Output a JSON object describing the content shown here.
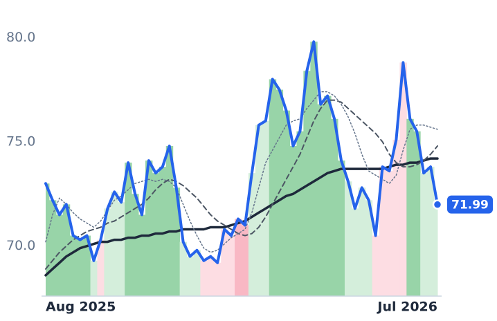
{
  "chart_data": {
    "type": "line",
    "categories": [
      "Aug 2025",
      null,
      null,
      null,
      null,
      null,
      null,
      null,
      null,
      null,
      null,
      null,
      null,
      null,
      null,
      null,
      null,
      null,
      null,
      null,
      null,
      null,
      null,
      null,
      null,
      null,
      null,
      null,
      null,
      null,
      null,
      null,
      null,
      null,
      null,
      null,
      null,
      null,
      null,
      null,
      null,
      null,
      null,
      null,
      null,
      null,
      null,
      null,
      null,
      null,
      null,
      null,
      null,
      null,
      null,
      null,
      null,
      "Jul 2026"
    ],
    "series": [
      {
        "color": "#2563eb",
        "values": [
          73.0,
          72.2,
          71.5,
          72.0,
          70.5,
          70.3,
          70.5,
          69.3,
          70.3,
          71.8,
          72.6,
          72.1,
          74.0,
          72.5,
          71.5,
          74.1,
          73.5,
          73.8,
          74.8,
          72.8,
          70.2,
          69.5,
          69.8,
          69.3,
          69.5,
          69.2,
          70.8,
          70.5,
          71.3,
          71.0,
          73.5,
          75.8,
          76.0,
          78.0,
          77.5,
          76.5,
          74.8,
          75.5,
          78.4,
          79.8,
          76.8,
          77.2,
          76.1,
          74.1,
          73.1,
          71.8,
          72.8,
          72.2,
          70.5,
          73.8,
          73.6,
          75.1,
          78.8,
          76.1,
          75.5,
          73.5,
          73.8,
          71.99
        ],
        "value_labels": [
          null,
          null,
          null,
          null,
          null,
          null,
          null,
          null,
          null,
          null,
          null,
          null,
          null,
          null,
          null,
          null,
          null,
          null,
          null,
          null,
          null,
          null,
          null,
          null,
          null,
          null,
          null,
          null,
          null,
          null,
          null,
          null,
          null,
          null,
          null,
          null,
          null,
          null,
          null,
          null,
          null,
          null,
          null,
          null,
          null,
          null,
          null,
          null,
          null,
          null,
          null,
          null,
          null,
          null,
          null,
          null,
          null,
          "71.99"
        ],
        "area_colors": [
          "#98d4a8",
          "#98d4a8",
          "#98d4a8",
          "#98d4a8",
          "#98d4a8",
          "#98d4a8",
          "#98d4a8",
          "#d4eedb",
          "#fddde3",
          "#d4eedb",
          "#d4eedb",
          "#d4eedb",
          "#98d4a8",
          "#98d4a8",
          "#98d4a8",
          "#98d4a8",
          "#98d4a8",
          "#98d4a8",
          "#98d4a8",
          "#98d4a8",
          "#d4eedb",
          "#d4eedb",
          "#d4eedb",
          "#fddde3",
          "#fddde3",
          "#fddde3",
          "#fddde3",
          "#fddde3",
          "#f9b8c4",
          "#f9b8c4",
          "#d4eedb",
          "#d4eedb",
          "#d4eedb",
          "#98d4a8",
          "#98d4a8",
          "#98d4a8",
          "#98d4a8",
          "#98d4a8",
          "#98d4a8",
          "#98d4a8",
          "#98d4a8",
          "#98d4a8",
          "#98d4a8",
          "#98d4a8",
          "#d4eedb",
          "#d4eedb",
          "#d4eedb",
          "#d4eedb",
          "#fddde3",
          "#fddde3",
          "#fddde3",
          "#fddde3",
          "#fddde3",
          "#98d4a8",
          "#98d4a8",
          "#d4eedb",
          "#d4eedb",
          "#d4eedb"
        ],
        "width": 4
      },
      {
        "color": "#1e293b",
        "values": [
          68.6,
          68.9,
          69.2,
          69.5,
          69.7,
          69.9,
          70.0,
          70.1,
          70.2,
          70.2,
          70.3,
          70.3,
          70.4,
          70.4,
          70.5,
          70.5,
          70.6,
          70.6,
          70.7,
          70.7,
          70.8,
          70.8,
          70.8,
          70.8,
          70.9,
          70.9,
          70.9,
          71.0,
          71.1,
          71.2,
          71.4,
          71.6,
          71.8,
          72.0,
          72.2,
          72.4,
          72.5,
          72.7,
          72.9,
          73.1,
          73.3,
          73.5,
          73.6,
          73.7,
          73.7,
          73.7,
          73.7,
          73.7,
          73.7,
          73.7,
          73.8,
          73.9,
          73.9,
          74.0,
          74.0,
          74.1,
          74.2,
          74.2
        ],
        "width": 3.5
      },
      {
        "color": "#4b5563",
        "dash": "7 5",
        "values": [
          68.9,
          69.3,
          69.7,
          70.0,
          70.3,
          70.5,
          70.7,
          70.8,
          70.9,
          71.1,
          71.2,
          71.4,
          71.6,
          71.8,
          72.0,
          72.3,
          72.7,
          73.0,
          73.2,
          73.1,
          72.9,
          72.6,
          72.3,
          71.9,
          71.5,
          71.2,
          71.0,
          70.8,
          70.6,
          70.5,
          70.6,
          70.9,
          71.4,
          72.0,
          72.6,
          73.2,
          73.8,
          74.4,
          75.2,
          76.0,
          76.6,
          77.0,
          77.0,
          76.9,
          76.6,
          76.3,
          76.0,
          75.7,
          75.4,
          75.0,
          74.4,
          74.0,
          73.8,
          73.8,
          73.9,
          74.1,
          74.4,
          74.8
        ],
        "width": 2
      },
      {
        "color": "#64748b",
        "dash": "2 3",
        "values": [
          70.2,
          71.5,
          72.3,
          72.0,
          71.6,
          71.3,
          71.1,
          70.9,
          71.2,
          71.7,
          72.2,
          72.4,
          72.7,
          73.0,
          73.1,
          73.2,
          73.1,
          73.2,
          73.1,
          72.8,
          72.0,
          71.2,
          70.5,
          69.9,
          69.7,
          69.8,
          70.1,
          70.4,
          70.6,
          70.8,
          71.6,
          72.8,
          74.0,
          74.6,
          75.2,
          75.8,
          76.0,
          76.1,
          76.6,
          77.0,
          77.4,
          77.4,
          77.2,
          76.8,
          76.2,
          75.4,
          74.4,
          73.6,
          73.4,
          73.2,
          73.0,
          73.4,
          74.6,
          75.6,
          75.8,
          75.8,
          75.7,
          75.6
        ],
        "width": 1.5
      }
    ],
    "ylim": [
      67.6,
      81.8
    ],
    "yticks": [
      {
        "value": 70,
        "label": "70.0"
      },
      {
        "value": 75,
        "label": "75.0"
      },
      {
        "value": 80,
        "label": "80.0"
      }
    ],
    "grid": false
  }
}
